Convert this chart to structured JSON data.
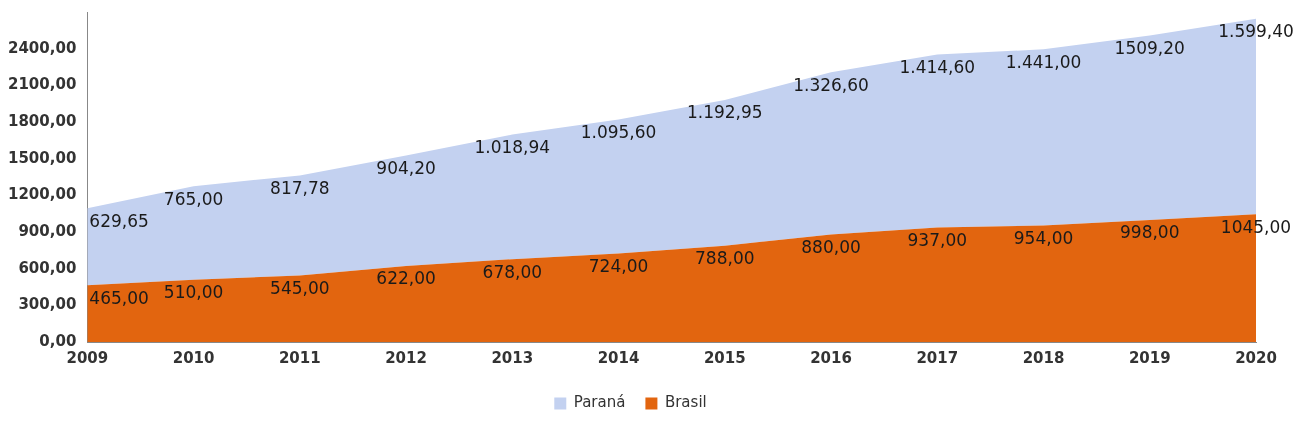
{
  "chart_data": {
    "type": "area",
    "stacked": true,
    "categories": [
      "2009",
      "2010",
      "2011",
      "2012",
      "2013",
      "2014",
      "2015",
      "2016",
      "2017",
      "2018",
      "2019",
      "2020"
    ],
    "series": [
      {
        "name": "Brasil",
        "color": "#e2650f",
        "values": [
          465,
          510,
          545,
          622,
          678,
          724,
          788,
          880,
          937,
          954,
          998,
          1045
        ],
        "value_labels": [
          "465,00",
          "510,00",
          "545,00",
          "622,00",
          "678,00",
          "724,00",
          "788,00",
          "880,00",
          "937,00",
          "954,00",
          "998,00",
          "1045,00"
        ]
      },
      {
        "name": "Paraná",
        "color": "#c3d1f0",
        "values": [
          629.65,
          765,
          817.78,
          904.2,
          1018.94,
          1095.6,
          1192.95,
          1326.6,
          1414.6,
          1441,
          1509.2,
          1599.4
        ],
        "value_labels": [
          "629,65",
          "765,00",
          "817,78",
          "904,20",
          "1.018,94",
          "1.095,60",
          "1.192,95",
          "1.326,60",
          "1.414,60",
          "1.441,00",
          "1509,20",
          "1.599,40"
        ]
      }
    ],
    "ylim": [
      0,
      2700
    ],
    "yticks": [
      {
        "value": 0,
        "label": "0,00"
      },
      {
        "value": 300,
        "label": "300,00"
      },
      {
        "value": 600,
        "label": "600,00"
      },
      {
        "value": 900,
        "label": "900,00"
      },
      {
        "value": 1200,
        "label": "1200,00"
      },
      {
        "value": 1500,
        "label": "1500,00"
      },
      {
        "value": 1800,
        "label": "1800,00"
      },
      {
        "value": 2100,
        "label": "2100,00"
      },
      {
        "value": 2400,
        "label": "2400,00"
      }
    ],
    "grid": false,
    "legend": "bottom"
  }
}
